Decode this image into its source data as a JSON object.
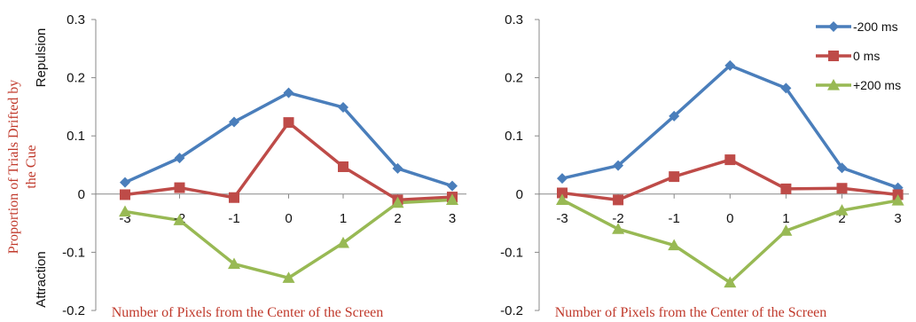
{
  "figure": {
    "ylabel_line1": "Proportion of Trials Drifted by",
    "ylabel_line2": "the Cue",
    "repulsion_label": "Repulsion",
    "attraction_label": "Attraction"
  },
  "chart_data": [
    {
      "type": "line",
      "title": "",
      "xlabel": "Number of Pixels from the Center of the Screen",
      "ylabel": "",
      "x": [
        -3,
        -2,
        -1,
        0,
        1,
        2,
        3
      ],
      "x_tick_labels": [
        "-3",
        "-2",
        "-1",
        "0",
        "1",
        "2",
        "3"
      ],
      "ylim": [
        -0.2,
        0.3
      ],
      "y_ticks": [
        -0.2,
        -0.1,
        0,
        0.1,
        0.2,
        0.3
      ],
      "y_tick_labels": [
        "-0.2",
        "-0.1",
        "0",
        "0.1",
        "0.2",
        "0.3"
      ],
      "grid": false,
      "legend": "none",
      "series": [
        {
          "key": "m200",
          "color": "#4a7ebb",
          "marker": "diamond",
          "values": [
            0.02,
            0.062,
            0.124,
            0.174,
            0.149,
            0.044,
            0.014
          ]
        },
        {
          "key": "zero",
          "color": "#be4b48",
          "marker": "square",
          "values": [
            -0.001,
            0.011,
            -0.006,
            0.123,
            0.047,
            -0.01,
            -0.005
          ]
        },
        {
          "key": "p200",
          "color": "#98b954",
          "marker": "triangle",
          "values": [
            -0.03,
            -0.045,
            -0.12,
            -0.144,
            -0.084,
            -0.015,
            -0.01
          ]
        }
      ]
    },
    {
      "type": "line",
      "title": "",
      "xlabel": "Number of Pixels from the Center of the Screen",
      "ylabel": "",
      "x": [
        -3,
        -2,
        -1,
        0,
        1,
        2,
        3
      ],
      "x_tick_labels": [
        "-3",
        "-2",
        "-1",
        "0",
        "1",
        "2",
        "3"
      ],
      "ylim": [
        -0.2,
        0.3
      ],
      "y_ticks": [
        -0.2,
        -0.1,
        0,
        0.1,
        0.2,
        0.3
      ],
      "y_tick_labels": [
        "-0.2",
        "-0.1",
        "0",
        "0.1",
        "0.2",
        "0.3"
      ],
      "grid": false,
      "legend": "top-right",
      "series": [
        {
          "name": "-200 ms",
          "color": "#4a7ebb",
          "marker": "diamond",
          "values": [
            0.027,
            0.049,
            0.134,
            0.221,
            0.182,
            0.045,
            0.011
          ]
        },
        {
          "name": "0 ms",
          "color": "#be4b48",
          "marker": "square",
          "values": [
            0.002,
            -0.01,
            0.03,
            0.059,
            0.009,
            0.01,
            -0.001
          ]
        },
        {
          "name": "+200 ms",
          "color": "#98b954",
          "marker": "triangle",
          "values": [
            -0.01,
            -0.06,
            -0.088,
            -0.152,
            -0.063,
            -0.028,
            -0.011
          ]
        }
      ]
    }
  ]
}
